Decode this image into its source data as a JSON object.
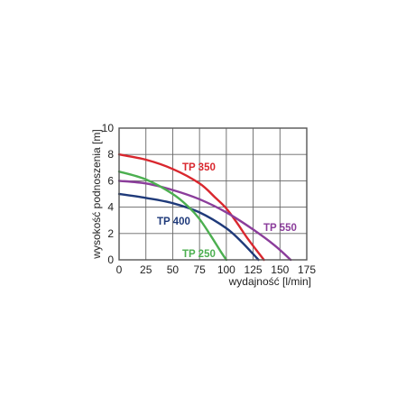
{
  "chart_data": {
    "type": "line",
    "xlabel": "wydajność  [l/min]",
    "ylabel": "wysokość podnoszenia [m]",
    "xlim": [
      0,
      175
    ],
    "ylim": [
      0,
      10
    ],
    "x_ticks": [
      "0",
      "25",
      "50",
      "75",
      "100",
      "125",
      "150",
      "175"
    ],
    "y_ticks": [
      "0",
      "2",
      "4",
      "6",
      "8",
      "10"
    ],
    "grid": true,
    "series": [
      {
        "name": "TP 350",
        "color": "#d9272e",
        "points": [
          [
            0,
            8.0
          ],
          [
            25,
            7.6
          ],
          [
            50,
            6.9
          ],
          [
            75,
            5.8
          ],
          [
            90,
            4.7
          ],
          [
            100,
            3.9
          ],
          [
            110,
            2.8
          ],
          [
            120,
            1.6
          ],
          [
            135,
            0
          ]
        ]
      },
      {
        "name": "TP 550",
        "color": "#8b3d9b",
        "points": [
          [
            0,
            6.0
          ],
          [
            25,
            5.8
          ],
          [
            50,
            5.3
          ],
          [
            75,
            4.6
          ],
          [
            100,
            3.6
          ],
          [
            125,
            2.3
          ],
          [
            145,
            1.1
          ],
          [
            160,
            0
          ]
        ]
      },
      {
        "name": "TP 400",
        "color": "#1f3a7a",
        "points": [
          [
            0,
            5.0
          ],
          [
            25,
            4.7
          ],
          [
            50,
            4.3
          ],
          [
            75,
            3.6
          ],
          [
            100,
            2.4
          ],
          [
            115,
            1.3
          ],
          [
            130,
            0
          ]
        ]
      },
      {
        "name": "TP 250",
        "color": "#4caf50",
        "points": [
          [
            0,
            6.7
          ],
          [
            25,
            6.1
          ],
          [
            50,
            5.0
          ],
          [
            65,
            4.0
          ],
          [
            75,
            3.1
          ],
          [
            85,
            1.9
          ],
          [
            95,
            0.6
          ],
          [
            100,
            0
          ]
        ]
      }
    ]
  }
}
